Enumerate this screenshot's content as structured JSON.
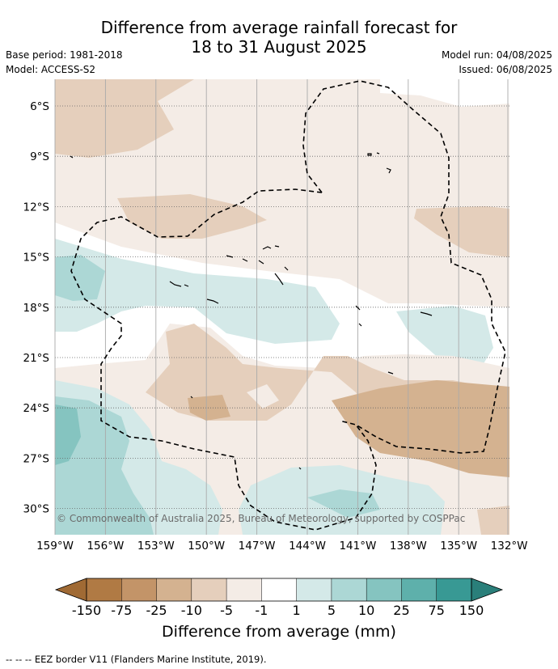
{
  "header": {
    "title_line1": "Difference from average rainfall forecast for",
    "title_line2": "18 to 31 August 2025",
    "base_period": "Base period: 1981-2018",
    "model": "Model: ACCESS-S2",
    "model_run": "Model run: 04/08/2025",
    "issued": "Issued: 06/08/2025"
  },
  "map": {
    "lat_labels": [
      "6°S",
      "9°S",
      "12°S",
      "15°S",
      "18°S",
      "21°S",
      "24°S",
      "27°S",
      "30°S"
    ],
    "lon_labels": [
      "159°W",
      "156°W",
      "153°W",
      "150°W",
      "147°W",
      "144°W",
      "141°W",
      "138°W",
      "135°W",
      "132°W"
    ],
    "copyright": "© Commonwealth of Australia 2025, Bureau of Meteorology, supported by COSPPac"
  },
  "colorbar": {
    "colors": [
      "#a06a34",
      "#b07a44",
      "#c39468",
      "#d4b290",
      "#e5cfbc",
      "#f4ece6",
      "#ffffff",
      "#d4e9e8",
      "#acd7d5",
      "#85c4c0",
      "#5eb0ab",
      "#389994",
      "#2a7f7a"
    ],
    "labels": [
      "-150",
      "-75",
      "-25",
      "-10",
      "-5",
      "-1",
      "1",
      "5",
      "10",
      "25",
      "75",
      "150"
    ],
    "title": "Difference from average (mm)"
  },
  "legend": {
    "eez": "-- -- -- EEZ border V11 (Flanders Marine Institute, 2019)."
  }
}
